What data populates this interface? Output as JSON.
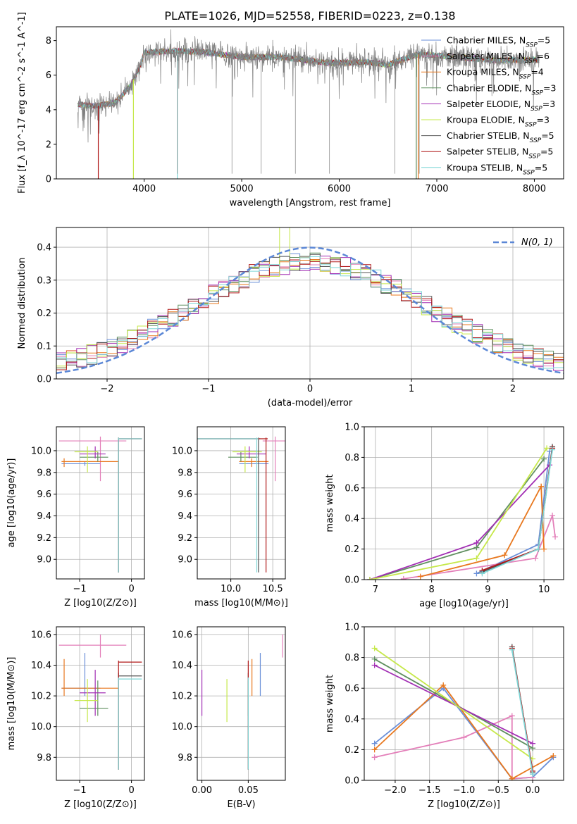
{
  "title": "PLATE=1026, MJD=52558, FIBERID=0223, z=0.138",
  "colors": {
    "chabrier_miles": "#6a8fd8",
    "salpeter_miles": "#e37fb9",
    "kroupa_miles": "#e8781f",
    "chabrier_elodie": "#5f8f5f",
    "salpeter_elodie": "#a22fb4",
    "kroupa_elodie": "#c6e84a",
    "chabrier_stelib": "#555555",
    "salpeter_stelib": "#b01818",
    "kroupa_stelib": "#7fd6d6",
    "data": "#808080"
  },
  "chart_data": [
    {
      "id": "spectrum",
      "type": "line",
      "title": "PLATE=1026, MJD=52558, FIBERID=0223, z=0.138",
      "xlabel": "wavelength [Angstrom, rest frame]",
      "ylabel": "Flux [f_λ 10^-17 erg cm^-2 s^-1 A^-1]",
      "xlim": [
        3100,
        8300
      ],
      "ylim": [
        0,
        8.8
      ],
      "xticks": [
        4000,
        5000,
        6000,
        7000,
        8000
      ],
      "yticks": [
        0,
        2,
        4,
        6,
        8
      ],
      "legend": "right",
      "legend_entries": [
        "Chabrier MILES, N_SSP=5",
        "Salpeter MILES, N_SSP=6",
        "Kroupa MILES, N_SSP=4",
        "Chabrier ELODIE, N_SSP=3",
        "Salpeter ELODIE, N_SSP=3",
        "Kroupa ELODIE, N_SSP=3",
        "Chabrier STELIB, N_SSP=5",
        "Salpeter STELIB, N_SSP=5",
        "Kroupa STELIB, N_SSP=5"
      ],
      "continuum": [
        [
          3320,
          4.3
        ],
        [
          3500,
          4.2
        ],
        [
          3700,
          4.4
        ],
        [
          3850,
          5.3
        ],
        [
          3950,
          6.4
        ],
        [
          4000,
          7.3
        ],
        [
          4300,
          7.4
        ],
        [
          4600,
          7.35
        ],
        [
          5000,
          7.05
        ],
        [
          5400,
          7.05
        ],
        [
          5900,
          6.7
        ],
        [
          6300,
          6.75
        ],
        [
          6500,
          6.6
        ],
        [
          6800,
          7.2
        ],
        [
          7200,
          7.05
        ],
        [
          7600,
          6.85
        ],
        [
          8050,
          6.9
        ]
      ]
    },
    {
      "id": "residuals",
      "type": "bar",
      "xlabel": "(data-model)/error",
      "ylabel": "Normed distribution",
      "xlim": [
        -2.5,
        2.5
      ],
      "ylim": [
        0,
        0.46
      ],
      "xticks": [
        -2,
        -1,
        0,
        1,
        2
      ],
      "yticks": [
        0.0,
        0.1,
        0.2,
        0.3,
        0.4
      ],
      "legend": "top-right",
      "normal_label": "N(0, 1)",
      "bin_width": 0.1
    },
    {
      "id": "age_vs_Z",
      "type": "scatter",
      "xlabel": "Z [log10(Z/Z⊙)]",
      "ylabel": "age [log10(age/yr)]",
      "xlim": [
        -1.45,
        0.25
      ],
      "ylim": [
        8.82,
        10.22
      ],
      "xticks": [
        -1,
        0
      ],
      "yticks": [
        9.0,
        9.2,
        9.4,
        9.6,
        9.8,
        10.0
      ]
    },
    {
      "id": "age_vs_mass",
      "type": "scatter",
      "xlabel": "mass [log10(M/M⊙)]",
      "ylabel": "",
      "xlim": [
        9.6,
        10.65
      ],
      "ylim": [
        8.82,
        10.22
      ],
      "xticks": [
        10.0,
        10.5
      ],
      "yticks": [
        9.0,
        9.2,
        9.4,
        9.6,
        9.8,
        10.0
      ]
    },
    {
      "id": "weight_vs_age",
      "type": "line",
      "xlabel": "age [log10(age/yr)]",
      "ylabel": "mass weight",
      "xlim": [
        6.8,
        10.35
      ],
      "ylim": [
        0,
        1.0
      ],
      "xticks": [
        7,
        8,
        9,
        10
      ],
      "yticks": [
        0.0,
        0.2,
        0.4,
        0.6,
        0.8,
        1.0
      ]
    },
    {
      "id": "mass_vs_Z",
      "type": "scatter",
      "xlabel": "Z [log10(Z/Z⊙)]",
      "ylabel": "mass [log10(M/M⊙)]",
      "xlim": [
        -1.45,
        0.25
      ],
      "ylim": [
        9.65,
        10.65
      ],
      "xticks": [
        -1,
        0
      ],
      "yticks": [
        9.8,
        10.0,
        10.2,
        10.4,
        10.6
      ]
    },
    {
      "id": "mass_vs_ebv",
      "type": "scatter",
      "xlabel": "E(B-V)",
      "ylabel": "",
      "xlim": [
        -0.005,
        0.09
      ],
      "ylim": [
        9.65,
        10.65
      ],
      "xticks": [
        0.0,
        0.05
      ],
      "yticks": [
        9.8,
        10.0,
        10.2,
        10.4,
        10.6
      ]
    },
    {
      "id": "weight_vs_Z",
      "type": "line",
      "xlabel": "Z [log10(Z/Z⊙)]",
      "ylabel": "mass weight",
      "xlim": [
        -2.45,
        0.45
      ],
      "ylim": [
        0,
        1.0
      ],
      "xticks": [
        -2.0,
        -1.5,
        -1.0,
        -0.5,
        0.0
      ],
      "yticks": [
        0.0,
        0.2,
        0.4,
        0.6,
        0.8,
        1.0
      ]
    }
  ],
  "models": [
    {
      "key": "chabrier_miles",
      "age": 9.88,
      "age_err": [
        9.86,
        9.9
      ],
      "Z": -0.9,
      "Z_lo": -1.35,
      "Z_hi": -0.6,
      "mass": 10.25,
      "mass_err": [
        10.2,
        10.48
      ],
      "ebv": 0.063,
      "sfh_age": [
        [
          8.8,
          0.04
        ],
        [
          9.9,
          0.23
        ],
        [
          10.1,
          0.84
        ]
      ],
      "sfh_Z": [
        [
          -2.3,
          0.24
        ],
        [
          -1.3,
          0.6
        ],
        [
          -0.3,
          0.01
        ],
        [
          0.0,
          0.02
        ],
        [
          0.3,
          0.15
        ]
      ]
    },
    {
      "key": "salpeter_miles",
      "age": 10.09,
      "age_err": [
        9.72,
        10.13
      ],
      "Z": -0.6,
      "Z_lo": -1.4,
      "Z_hi": -0.1,
      "mass": 10.53,
      "mass_err": [
        10.45,
        10.6
      ],
      "ebv": 0.087,
      "sfh_age": [
        [
          7.5,
          0.005
        ],
        [
          9.85,
          0.14
        ],
        [
          10.15,
          0.42
        ],
        [
          10.2,
          0.28
        ]
      ],
      "sfh_Z": [
        [
          -2.3,
          0.15
        ],
        [
          -1.0,
          0.28
        ],
        [
          -0.3,
          0.42
        ],
        [
          -0.3,
          0.01
        ],
        [
          0.0,
          0.02
        ]
      ]
    },
    {
      "key": "kroupa_miles",
      "age": 9.9,
      "age_err": [
        9.85,
        9.93
      ],
      "Z": -1.3,
      "Z_lo": -1.35,
      "Z_hi": -0.25,
      "mass": 10.25,
      "mass_err": [
        10.2,
        10.44
      ],
      "ebv": 0.054,
      "sfh_age": [
        [
          7.8,
          0.02
        ],
        [
          9.3,
          0.16
        ],
        [
          9.95,
          0.61
        ],
        [
          10.0,
          0.2
        ]
      ],
      "sfh_Z": [
        [
          -2.3,
          0.2
        ],
        [
          -1.3,
          0.62
        ],
        [
          -0.3,
          0.01
        ],
        [
          0.3,
          0.16
        ]
      ]
    },
    {
      "key": "chabrier_elodie",
      "age": 9.94,
      "age_err": [
        9.9,
        9.99
      ],
      "Z": -0.65,
      "Z_lo": -1.0,
      "Z_hi": -0.45,
      "mass": 10.12,
      "mass_err": [
        10.07,
        10.3
      ],
      "ebv": 0.05,
      "sfh_age": [
        [
          6.9,
          0.0
        ],
        [
          8.8,
          0.21
        ],
        [
          10.0,
          0.79
        ]
      ],
      "sfh_Z": [
        [
          -2.3,
          0.79
        ],
        [
          0.0,
          0.21
        ]
      ]
    },
    {
      "key": "salpeter_elodie",
      "age": 9.97,
      "age_err": [
        9.93,
        10.04
      ],
      "Z": -0.7,
      "Z_lo": -1.0,
      "Z_hi": -0.5,
      "mass": 10.22,
      "mass_err": [
        10.07,
        10.37
      ],
      "ebv": 0.0,
      "sfh_age": [
        [
          6.9,
          0.0
        ],
        [
          8.8,
          0.24
        ],
        [
          10.1,
          0.75
        ]
      ],
      "sfh_Z": [
        [
          -2.3,
          0.75
        ],
        [
          0.0,
          0.24
        ]
      ]
    },
    {
      "key": "kroupa_elodie",
      "age": 9.99,
      "age_err": [
        9.8,
        10.04
      ],
      "Z": -0.85,
      "Z_lo": -1.1,
      "Z_hi": -0.65,
      "mass": 10.17,
      "mass_err": [
        10.03,
        10.31
      ],
      "ebv": 0.027,
      "sfh_age": [
        [
          6.9,
          0.0
        ],
        [
          8.8,
          0.14
        ],
        [
          10.05,
          0.86
        ]
      ],
      "sfh_Z": [
        [
          -2.3,
          0.86
        ],
        [
          0.0,
          0.14
        ]
      ]
    },
    {
      "key": "chabrier_stelib",
      "age": 10.11,
      "age_err": [
        8.88,
        10.12
      ],
      "Z": -0.25,
      "Z_lo": -0.25,
      "Z_hi": 0.2,
      "mass": 10.33,
      "mass_err": [
        9.72,
        10.35
      ],
      "ebv": 0.05,
      "sfh_age": [
        [
          8.9,
          0.05
        ],
        [
          9.9,
          0.2
        ],
        [
          10.15,
          0.87
        ]
      ],
      "sfh_Z": [
        [
          -0.3,
          0.87
        ],
        [
          0.0,
          0.05
        ]
      ]
    },
    {
      "key": "salpeter_stelib",
      "age": 10.11,
      "age_err": [
        8.88,
        10.12
      ],
      "Z": -0.25,
      "Z_lo": -0.25,
      "Z_hi": 0.2,
      "mass": 10.42,
      "mass_err": [
        9.72,
        10.43
      ],
      "ebv": 0.05,
      "sfh_age": [
        [
          8.9,
          0.06
        ],
        [
          9.9,
          0.2
        ],
        [
          10.15,
          0.86
        ]
      ],
      "sfh_Z": [
        [
          -0.3,
          0.86
        ],
        [
          0.0,
          0.06
        ]
      ]
    },
    {
      "key": "kroupa_stelib",
      "age": 10.11,
      "age_err": [
        8.88,
        10.12
      ],
      "Z": -0.25,
      "Z_lo": -0.25,
      "Z_hi": 0.2,
      "mass": 10.31,
      "mass_err": [
        9.72,
        10.32
      ],
      "ebv": 0.05,
      "sfh_age": [
        [
          8.9,
          0.04
        ],
        [
          9.9,
          0.2
        ],
        [
          10.15,
          0.85
        ]
      ],
      "sfh_Z": [
        [
          -0.3,
          0.85
        ],
        [
          0.0,
          0.04
        ]
      ]
    }
  ]
}
